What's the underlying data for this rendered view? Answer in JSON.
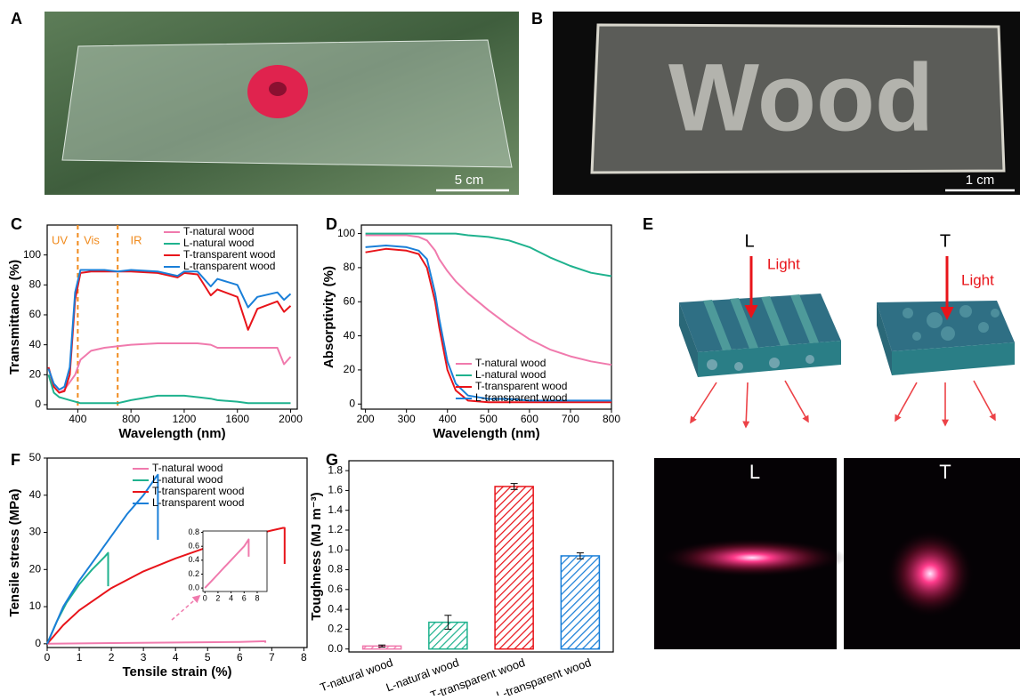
{
  "panels": {
    "A": {
      "label": "A",
      "scale": "5 cm"
    },
    "B": {
      "label": "B",
      "text": "Wood",
      "scale": "1 cm"
    },
    "E": {
      "label": "E",
      "left": "L",
      "right": "T",
      "light_left": "Light",
      "light_right": "Light",
      "photos": [
        "L",
        "T"
      ]
    }
  },
  "chart_data": [
    {
      "type": "line",
      "panel": "C",
      "xlabel": "Wavelength (nm)",
      "ylabel": "Transmittance (%)",
      "xlim": [
        170,
        2050
      ],
      "ylim": [
        -3,
        120
      ],
      "xticks": [
        400,
        800,
        1200,
        1600,
        2000
      ],
      "yticks": [
        0,
        20,
        40,
        60,
        80,
        100
      ],
      "annotations": [
        "UV",
        "Vis",
        "IR"
      ],
      "region_lines": [
        400,
        700
      ],
      "legend": "upper right",
      "x": [
        180,
        220,
        260,
        300,
        340,
        380,
        420,
        500,
        600,
        700,
        800,
        1000,
        1150,
        1200,
        1300,
        1400,
        1450,
        1600,
        1680,
        1750,
        1900,
        1950,
        2000
      ],
      "series": [
        {
          "name": "T-natural wood",
          "color": "#f07aad",
          "values": [
            25,
            12,
            8,
            10,
            15,
            20,
            30,
            36,
            38,
            39,
            40,
            41,
            41,
            41,
            41,
            40,
            38,
            38,
            38,
            38,
            38,
            27,
            32
          ]
        },
        {
          "name": "L-natural wood",
          "color": "#1fb28e",
          "values": [
            20,
            8,
            5,
            4,
            3,
            2,
            1,
            1,
            1,
            1,
            3,
            6,
            6,
            6,
            5,
            4,
            3,
            2,
            1,
            1,
            1,
            1,
            1
          ]
        },
        {
          "name": "T-transparent wood",
          "color": "#e8141a",
          "values": [
            25,
            12,
            8,
            9,
            20,
            70,
            88,
            89,
            89,
            89,
            89,
            88,
            85,
            88,
            87,
            73,
            77,
            72,
            50,
            64,
            69,
            62,
            66
          ]
        },
        {
          "name": "L-transparent wood",
          "color": "#1a7fd8",
          "values": [
            24,
            14,
            10,
            12,
            25,
            75,
            90,
            90,
            90,
            89,
            90,
            89,
            86,
            89,
            89,
            79,
            84,
            80,
            65,
            72,
            75,
            70,
            74
          ]
        }
      ]
    },
    {
      "type": "line",
      "panel": "D",
      "xlabel": "Wavelength (nm)",
      "ylabel": "Absorptivity (%)",
      "xlim": [
        190,
        800
      ],
      "ylim": [
        -3,
        105
      ],
      "xticks": [
        200,
        300,
        400,
        500,
        600,
        700,
        800
      ],
      "yticks": [
        0,
        20,
        40,
        60,
        80,
        100
      ],
      "legend": "lower right",
      "x": [
        200,
        250,
        300,
        330,
        350,
        370,
        380,
        400,
        420,
        450,
        500,
        550,
        600,
        650,
        700,
        750,
        800
      ],
      "series": [
        {
          "name": "T-natural wood",
          "color": "#f07aad",
          "values": [
            99,
            99,
            99,
            98,
            96,
            90,
            85,
            78,
            72,
            65,
            55,
            46,
            38,
            32,
            28,
            25,
            23
          ]
        },
        {
          "name": "L-natural wood",
          "color": "#1fb28e",
          "values": [
            100,
            100,
            100,
            100,
            100,
            100,
            100,
            100,
            100,
            99,
            98,
            96,
            92,
            86,
            81,
            77,
            75
          ]
        },
        {
          "name": "T-transparent wood",
          "color": "#e8141a",
          "values": [
            89,
            91,
            90,
            88,
            80,
            60,
            45,
            20,
            8,
            2,
            1,
            1,
            1,
            1,
            1,
            1,
            1
          ]
        },
        {
          "name": "L-transparent wood",
          "color": "#1a7fd8",
          "values": [
            92,
            93,
            92,
            90,
            85,
            65,
            50,
            25,
            12,
            5,
            3,
            3,
            2,
            2,
            2,
            2,
            2
          ]
        }
      ]
    },
    {
      "type": "line",
      "panel": "F",
      "xlabel": "Tensile strain (%)",
      "ylabel": "Tensile stress (MPa)",
      "xlim": [
        0,
        8.1
      ],
      "ylim": [
        -1,
        50
      ],
      "xticks": [
        0,
        1,
        2,
        3,
        4,
        5,
        6,
        7,
        8
      ],
      "yticks": [
        0,
        10,
        20,
        30,
        40,
        50
      ],
      "legend": "upper center",
      "series": [
        {
          "name": "T-natural wood",
          "color": "#f07aad",
          "x": [
            0,
            2,
            4,
            6,
            6.8,
            6.8
          ],
          "values": [
            0,
            0.2,
            0.35,
            0.5,
            0.7,
            0.3
          ]
        },
        {
          "name": "L-natural wood",
          "color": "#1fb28e",
          "x": [
            0,
            0.3,
            0.6,
            1,
            1.4,
            1.8,
            1.9,
            1.9
          ],
          "values": [
            0,
            6,
            11,
            16,
            20,
            23.5,
            24.5,
            15.5
          ]
        },
        {
          "name": "T-transparent wood",
          "color": "#e8141a",
          "x": [
            0,
            0.5,
            1,
            2,
            3,
            4,
            5,
            6,
            7,
            7.35,
            7.4,
            7.4
          ],
          "values": [
            0,
            5,
            9,
            15,
            19.5,
            23,
            26,
            28.5,
            30.5,
            31.2,
            31.2,
            21.5
          ]
        },
        {
          "name": "L-transparent wood",
          "color": "#1a7fd8",
          "x": [
            0,
            0.5,
            1,
            1.5,
            2,
            2.5,
            3,
            3.4,
            3.45,
            3.45
          ],
          "values": [
            0,
            10,
            17,
            23,
            29,
            35,
            40,
            45,
            45.5,
            28
          ]
        }
      ],
      "inset": {
        "type": "line",
        "xlim": [
          -0.3,
          9.5
        ],
        "ylim": [
          -0.05,
          0.82
        ],
        "xticks": [
          0,
          2,
          4,
          6,
          8
        ],
        "yticks": [
          {
            "value": 0,
            "label": "0.0"
          },
          0.2,
          0.4,
          0.6,
          0.8
        ],
        "series": [
          {
            "color": "#f07aad",
            "x": [
              0,
              1,
              2,
              3,
              4,
              5,
              6,
              6.7,
              6.7
            ],
            "values": [
              0,
              0.1,
              0.2,
              0.3,
              0.4,
              0.5,
              0.6,
              0.7,
              0.45
            ]
          }
        ]
      }
    },
    {
      "type": "bar",
      "panel": "G",
      "ylabel": "Toughness (MJ m⁻³)",
      "ylim": [
        -0.03,
        1.9
      ],
      "yticks": [
        {
          "value": 0,
          "label": "0.0"
        },
        0.2,
        0.4,
        0.6,
        0.8,
        {
          "value": 1,
          "label": "1.0"
        },
        1.2,
        1.4,
        1.6,
        1.8
      ],
      "categories": [
        "T-natural wood",
        "L-natural wood",
        "T-transparent wood",
        "L-transparent wood"
      ],
      "values": [
        0.03,
        0.27,
        1.64,
        0.94
      ],
      "errors": [
        0.01,
        0.07,
        0.03,
        0.03
      ],
      "colors": [
        "#f07aad",
        "#1fb28e",
        "#e8141a",
        "#1a7fd8"
      ],
      "hatch": true
    }
  ]
}
